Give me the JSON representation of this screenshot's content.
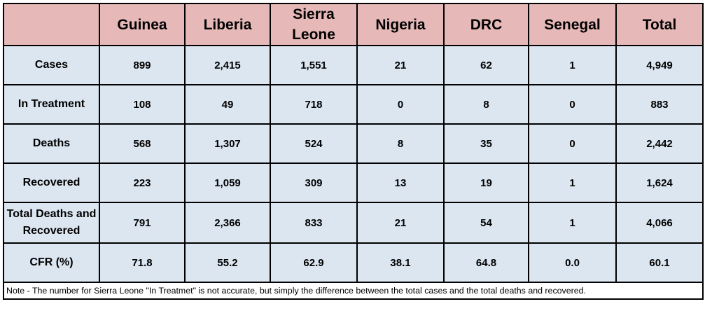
{
  "header": {
    "corner": "",
    "columns": [
      "Guinea",
      "Liberia",
      "Sierra Leone",
      "Nigeria",
      "DRC",
      "Senegal",
      "Total"
    ]
  },
  "rows": [
    {
      "label": "Cases",
      "values": [
        "899",
        "2,415",
        "1,551",
        "21",
        "62",
        "1",
        "4,949"
      ]
    },
    {
      "label": "In Treatment",
      "values": [
        "108",
        "49",
        "718",
        "0",
        "8",
        "0",
        "883"
      ]
    },
    {
      "label": "Deaths",
      "values": [
        "568",
        "1,307",
        "524",
        "8",
        "35",
        "0",
        "2,442"
      ]
    },
    {
      "label": "Recovered",
      "values": [
        "223",
        "1,059",
        "309",
        "13",
        "19",
        "1",
        "1,624"
      ]
    },
    {
      "label": "Total Deaths and Recovered",
      "values": [
        "791",
        "2,366",
        "833",
        "21",
        "54",
        "1",
        "4,066"
      ]
    },
    {
      "label": "CFR (%)",
      "values": [
        "71.8",
        "55.2",
        "62.9",
        "38.1",
        "64.8",
        "0.0",
        "60.1"
      ]
    }
  ],
  "note": "Note - The number for Sierra Leone \"In Treatmet\" is not accurate, but simply the difference between the total cases and the total deaths and recovered.",
  "colors": {
    "header_bg": "#e6b9b8",
    "cell_bg": "#dce6f1",
    "border": "#000000"
  }
}
